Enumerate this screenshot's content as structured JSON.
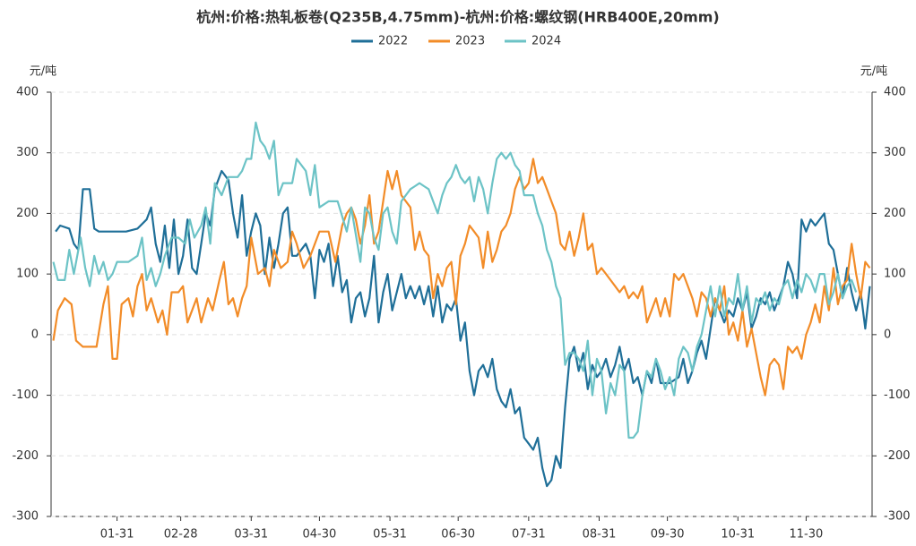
{
  "chart_data": {
    "type": "line",
    "title": "杭州:价格:热轧板卷(Q235B,4.75mm)-杭州:价格:螺纹钢(HRB400E,20mm)",
    "ylabel": "元/吨",
    "y2label": "元/吨",
    "xlim": [
      2,
      363
    ],
    "xticks": [
      {
        "value": 31,
        "label": "01-31"
      },
      {
        "value": 59,
        "label": "02-28"
      },
      {
        "value": 90,
        "label": "03-31"
      },
      {
        "value": 120,
        "label": "04-30"
      },
      {
        "value": 151,
        "label": "05-31"
      },
      {
        "value": 181,
        "label": "06-30"
      },
      {
        "value": 212,
        "label": "07-31"
      },
      {
        "value": 243,
        "label": "08-31"
      },
      {
        "value": 273,
        "label": "09-30"
      },
      {
        "value": 304,
        "label": "10-31"
      },
      {
        "value": 334,
        "label": "11-30"
      }
    ],
    "ylim": [
      -300,
      400
    ],
    "yticks": [
      -300,
      -200,
      -100,
      0,
      100,
      200,
      300,
      400
    ],
    "y2lim": [
      -300,
      400
    ],
    "y2ticks": [
      -300,
      -200,
      -100,
      0,
      100,
      200,
      300,
      400
    ],
    "grid": true,
    "legend": "top",
    "series": [
      {
        "name": "2022",
        "color": "#1f6f98",
        "x": [
          4,
          6,
          10,
          12,
          14,
          16,
          19,
          21,
          23,
          35,
          40,
          44,
          46,
          48,
          50,
          52,
          54,
          56,
          58,
          60,
          62,
          64,
          66,
          68,
          70,
          72,
          74,
          77,
          80,
          82,
          84,
          86,
          88,
          90,
          92,
          94,
          96,
          98,
          100,
          102,
          104,
          106,
          108,
          110,
          112,
          114,
          116,
          118,
          120,
          122,
          124,
          126,
          128,
          130,
          132,
          134,
          136,
          138,
          140,
          142,
          144,
          146,
          148,
          150,
          152,
          154,
          156,
          158,
          160,
          162,
          164,
          166,
          168,
          170,
          172,
          174,
          176,
          178,
          180,
          182,
          184,
          186,
          188,
          190,
          192,
          194,
          196,
          198,
          200,
          202,
          204,
          206,
          208,
          210,
          212,
          214,
          216,
          218,
          220,
          222,
          224,
          226,
          228,
          230,
          232,
          234,
          236,
          238,
          240,
          242,
          244,
          246,
          248,
          250,
          252,
          254,
          256,
          258,
          260,
          262,
          264,
          266,
          268,
          270,
          274,
          278,
          280,
          282,
          284,
          286,
          288,
          290,
          292,
          294,
          296,
          298,
          300,
          302,
          304,
          306,
          308,
          310,
          312,
          314,
          316,
          318,
          320,
          322,
          324,
          326,
          328,
          330,
          332,
          334,
          336,
          338,
          340,
          342,
          344,
          346,
          348,
          350,
          352,
          354,
          356,
          358,
          360,
          362
        ],
        "values": [
          170,
          180,
          175,
          150,
          140,
          240,
          240,
          175,
          170,
          170,
          175,
          190,
          210,
          150,
          120,
          180,
          110,
          190,
          100,
          130,
          190,
          110,
          100,
          150,
          200,
          180,
          240,
          270,
          255,
          200,
          160,
          230,
          130,
          170,
          200,
          180,
          100,
          160,
          110,
          150,
          200,
          210,
          130,
          130,
          140,
          150,
          130,
          60,
          140,
          120,
          150,
          80,
          130,
          70,
          90,
          20,
          60,
          70,
          30,
          60,
          130,
          20,
          70,
          100,
          40,
          70,
          100,
          60,
          80,
          60,
          80,
          50,
          80,
          30,
          80,
          20,
          50,
          40,
          60,
          -10,
          20,
          -60,
          -100,
          -60,
          -50,
          -70,
          -40,
          -90,
          -110,
          -120,
          -90,
          -130,
          -120,
          -170,
          -180,
          -190,
          -170,
          -220,
          -250,
          -240,
          -200,
          -220,
          -120,
          -40,
          -20,
          -60,
          -30,
          -90,
          -50,
          -70,
          -60,
          -40,
          -70,
          -50,
          -20,
          -60,
          -40,
          -80,
          -70,
          -100,
          -60,
          -80,
          -40,
          -80,
          -80,
          -70,
          -40,
          -80,
          -60,
          -30,
          -10,
          -40,
          10,
          60,
          40,
          20,
          40,
          30,
          60,
          40,
          70,
          10,
          30,
          60,
          50,
          70,
          40,
          60,
          80,
          120,
          100,
          60,
          190,
          170,
          190,
          180,
          190,
          200,
          150,
          140,
          100,
          60,
          110,
          70,
          40,
          70,
          10,
          80
        ]
      },
      {
        "name": "2023",
        "color": "#f28c28",
        "x": [
          3,
          5,
          8,
          11,
          13,
          16,
          22,
          25,
          27,
          29,
          31,
          33,
          36,
          38,
          40,
          42,
          44,
          46,
          49,
          51,
          53,
          55,
          58,
          60,
          62,
          64,
          66,
          68,
          71,
          73,
          76,
          78,
          80,
          82,
          84,
          86,
          88,
          90,
          93,
          96,
          98,
          100,
          103,
          106,
          108,
          110,
          113,
          116,
          120,
          124,
          127,
          130,
          132,
          134,
          136,
          138,
          140,
          142,
          144,
          146,
          148,
          150,
          152,
          154,
          156,
          158,
          160,
          162,
          164,
          166,
          168,
          170,
          172,
          174,
          176,
          178,
          180,
          182,
          184,
          186,
          188,
          190,
          192,
          194,
          196,
          198,
          200,
          202,
          204,
          206,
          208,
          210,
          212,
          214,
          216,
          218,
          220,
          222,
          224,
          226,
          228,
          230,
          232,
          234,
          236,
          238,
          240,
          242,
          244,
          246,
          248,
          250,
          252,
          254,
          256,
          258,
          260,
          262,
          264,
          266,
          268,
          270,
          272,
          274,
          276,
          278,
          280,
          282,
          284,
          286,
          288,
          290,
          292,
          294,
          296,
          298,
          300,
          302,
          304,
          306,
          308,
          310,
          312,
          314,
          316,
          318,
          320,
          322,
          324,
          326,
          328,
          330,
          332,
          334,
          336,
          338,
          340,
          342,
          344,
          346,
          348,
          350,
          352,
          354,
          356,
          358,
          360,
          362
        ],
        "values": [
          -10,
          40,
          60,
          50,
          -10,
          -20,
          -20,
          50,
          80,
          -40,
          -40,
          50,
          60,
          30,
          80,
          100,
          40,
          60,
          20,
          40,
          0,
          70,
          70,
          80,
          20,
          40,
          60,
          20,
          60,
          40,
          90,
          120,
          50,
          60,
          30,
          60,
          80,
          160,
          100,
          110,
          80,
          140,
          110,
          120,
          170,
          150,
          110,
          130,
          170,
          170,
          120,
          180,
          200,
          210,
          190,
          150,
          180,
          230,
          150,
          170,
          220,
          270,
          240,
          270,
          230,
          220,
          210,
          140,
          170,
          140,
          130,
          60,
          100,
          80,
          110,
          120,
          50,
          130,
          150,
          180,
          170,
          160,
          110,
          170,
          120,
          140,
          170,
          180,
          200,
          240,
          260,
          240,
          250,
          290,
          250,
          260,
          240,
          220,
          200,
          150,
          140,
          170,
          130,
          160,
          200,
          140,
          150,
          100,
          110,
          100,
          90,
          80,
          70,
          80,
          60,
          70,
          60,
          80,
          20,
          40,
          60,
          30,
          60,
          30,
          100,
          90,
          100,
          80,
          60,
          30,
          70,
          60,
          30,
          60,
          40,
          80,
          0,
          20,
          -10,
          40,
          -20,
          10,
          -30,
          -70,
          -100,
          -50,
          -40,
          -50,
          -90,
          -20,
          -30,
          -20,
          -40,
          0,
          20,
          50,
          20,
          80,
          40,
          110,
          50,
          80,
          90,
          150,
          100,
          60,
          120,
          110
        ]
      },
      {
        "name": "2024",
        "color": "#6cc3c6",
        "x": [
          3,
          5,
          8,
          10,
          12,
          15,
          17,
          19,
          21,
          23,
          25,
          27,
          29,
          31,
          36,
          40,
          42,
          44,
          46,
          48,
          50,
          52,
          55,
          58,
          61,
          63,
          65,
          68,
          70,
          72,
          74,
          77,
          80,
          84,
          86,
          88,
          90,
          92,
          94,
          96,
          98,
          100,
          102,
          104,
          108,
          110,
          114,
          116,
          118,
          120,
          124,
          128,
          132,
          134,
          138,
          140,
          142,
          144,
          146,
          148,
          150,
          152,
          154,
          156,
          158,
          160,
          162,
          164,
          166,
          168,
          170,
          172,
          174,
          176,
          178,
          180,
          182,
          184,
          186,
          188,
          190,
          192,
          194,
          196,
          198,
          200,
          202,
          204,
          206,
          208,
          210,
          212,
          214,
          216,
          218,
          220,
          222,
          224,
          226,
          228,
          230,
          232,
          234,
          236,
          238,
          240,
          242,
          244,
          246,
          248,
          250,
          252,
          254,
          256,
          258,
          260,
          262,
          264,
          266,
          268,
          270,
          272,
          274,
          276,
          278,
          280,
          282,
          284,
          286,
          288,
          290,
          292,
          294,
          296,
          298,
          300,
          302,
          304,
          306,
          308,
          310,
          312,
          314,
          316,
          318,
          320,
          322,
          324,
          326,
          328,
          330,
          332,
          334,
          336,
          338,
          340,
          342,
          344,
          346,
          348,
          350,
          352,
          354,
          356
        ],
        "values": [
          120,
          90,
          90,
          140,
          100,
          160,
          110,
          80,
          130,
          100,
          120,
          90,
          100,
          120,
          120,
          130,
          160,
          90,
          110,
          80,
          100,
          130,
          160,
          160,
          150,
          190,
          160,
          180,
          210,
          150,
          250,
          230,
          260,
          260,
          270,
          290,
          290,
          350,
          320,
          310,
          290,
          320,
          230,
          250,
          250,
          290,
          270,
          230,
          280,
          210,
          220,
          220,
          170,
          210,
          120,
          210,
          200,
          160,
          140,
          200,
          210,
          170,
          150,
          220,
          230,
          240,
          245,
          250,
          245,
          240,
          220,
          200,
          230,
          250,
          260,
          280,
          260,
          250,
          260,
          220,
          260,
          240,
          200,
          250,
          290,
          300,
          290,
          300,
          280,
          270,
          230,
          230,
          230,
          200,
          180,
          140,
          120,
          80,
          60,
          -50,
          -30,
          -30,
          -40,
          -60,
          -10,
          -100,
          -40,
          -60,
          -130,
          -80,
          -100,
          -50,
          -60,
          -170,
          -170,
          -160,
          -100,
          -60,
          -70,
          -40,
          -60,
          -90,
          -70,
          -100,
          -40,
          -20,
          -30,
          -60,
          -20,
          0,
          40,
          80,
          30,
          80,
          30,
          60,
          50,
          100,
          40,
          80,
          20,
          60,
          50,
          70,
          40,
          60,
          50,
          80,
          90,
          60,
          90,
          70,
          100,
          90,
          70,
          100,
          100,
          50,
          70,
          100,
          60,
          80,
          90,
          70
        ]
      }
    ]
  }
}
